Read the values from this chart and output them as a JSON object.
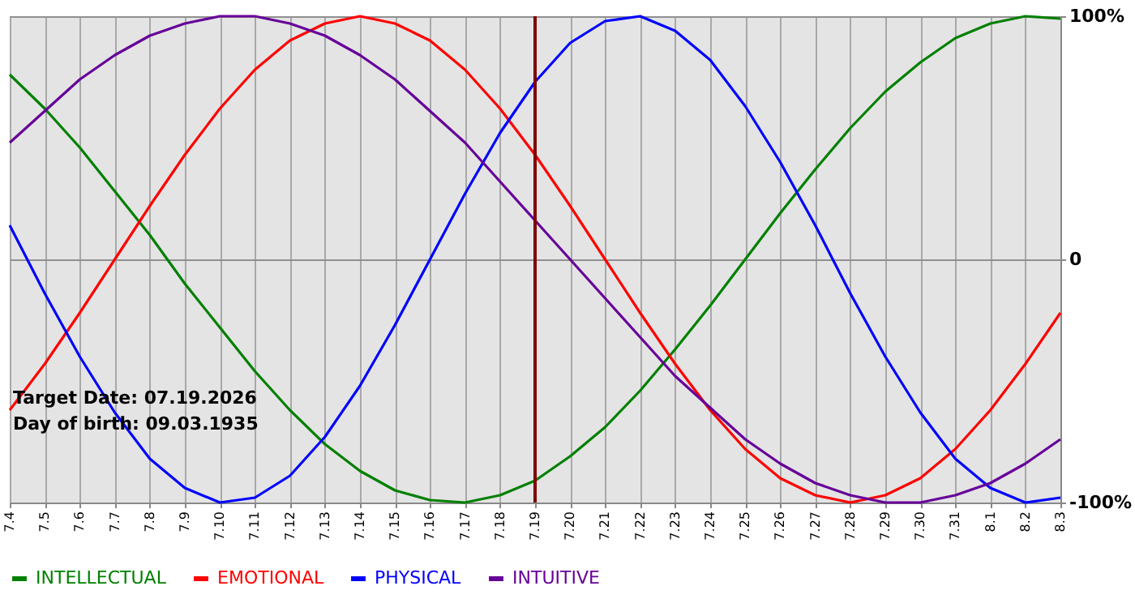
{
  "chart_data": {
    "type": "line",
    "categories": [
      "7.4",
      "7.5",
      "7.6",
      "7.7",
      "7.8",
      "7.9",
      "7.10",
      "7.11",
      "7.12",
      "7.13",
      "7.14",
      "7.15",
      "7.16",
      "7.17",
      "7.18",
      "7.19",
      "7.20",
      "7.21",
      "7.22",
      "7.23",
      "7.24",
      "7.25",
      "7.26",
      "7.27",
      "7.28",
      "7.29",
      "7.30",
      "7.31",
      "8.1",
      "8.2",
      "8.3"
    ],
    "series": [
      {
        "name": "INTELLECTUAL",
        "color": "#008000",
        "values": [
          76,
          62,
          46,
          28,
          10,
          -10,
          -28,
          -46,
          -62,
          -76,
          -87,
          -95,
          -99,
          -100,
          -97,
          -91,
          -81,
          -69,
          -54,
          -37,
          -19,
          0,
          19,
          37,
          54,
          69,
          81,
          91,
          97,
          100,
          99
        ]
      },
      {
        "name": "EMOTIONAL",
        "color": "#ff0000",
        "values": [
          -62,
          -43,
          -22,
          0,
          22,
          43,
          62,
          78,
          90,
          97,
          100,
          97,
          90,
          78,
          62,
          43,
          22,
          0,
          -22,
          -43,
          -62,
          -78,
          -90,
          -97,
          -100,
          -97,
          -90,
          -78,
          -62,
          -43,
          -22
        ]
      },
      {
        "name": "PHYSICAL",
        "color": "#0000ff",
        "values": [
          14,
          -14,
          -40,
          -63,
          -82,
          -94,
          -100,
          -98,
          -89,
          -73,
          -52,
          -27,
          0,
          27,
          52,
          73,
          89,
          98,
          100,
          94,
          82,
          63,
          40,
          14,
          -14,
          -40,
          -63,
          -82,
          -94,
          -100,
          -98
        ]
      },
      {
        "name": "INTUITIVE",
        "color": "#660099",
        "values": [
          48,
          61,
          74,
          84,
          92,
          97,
          100,
          100,
          97,
          92,
          84,
          74,
          61,
          48,
          32,
          16,
          0,
          -16,
          -32,
          -48,
          -61,
          -74,
          -84,
          -92,
          -97,
          -100,
          -100,
          -97,
          -92,
          -84,
          -74
        ]
      }
    ],
    "ylim": [
      -100,
      100
    ],
    "yticks": [
      {
        "value": 100,
        "label": "100%"
      },
      0,
      {
        "value": -100,
        "label": "-100%"
      }
    ],
    "grid": true,
    "legend": "bottom left",
    "marker": "none",
    "ref_lines": [
      {
        "axis": "x",
        "value": "7.19",
        "color": "#800000"
      }
    ],
    "annotations": [
      "Target Date: 07.19.2026",
      "Day of birth: 09.03.1935"
    ]
  }
}
